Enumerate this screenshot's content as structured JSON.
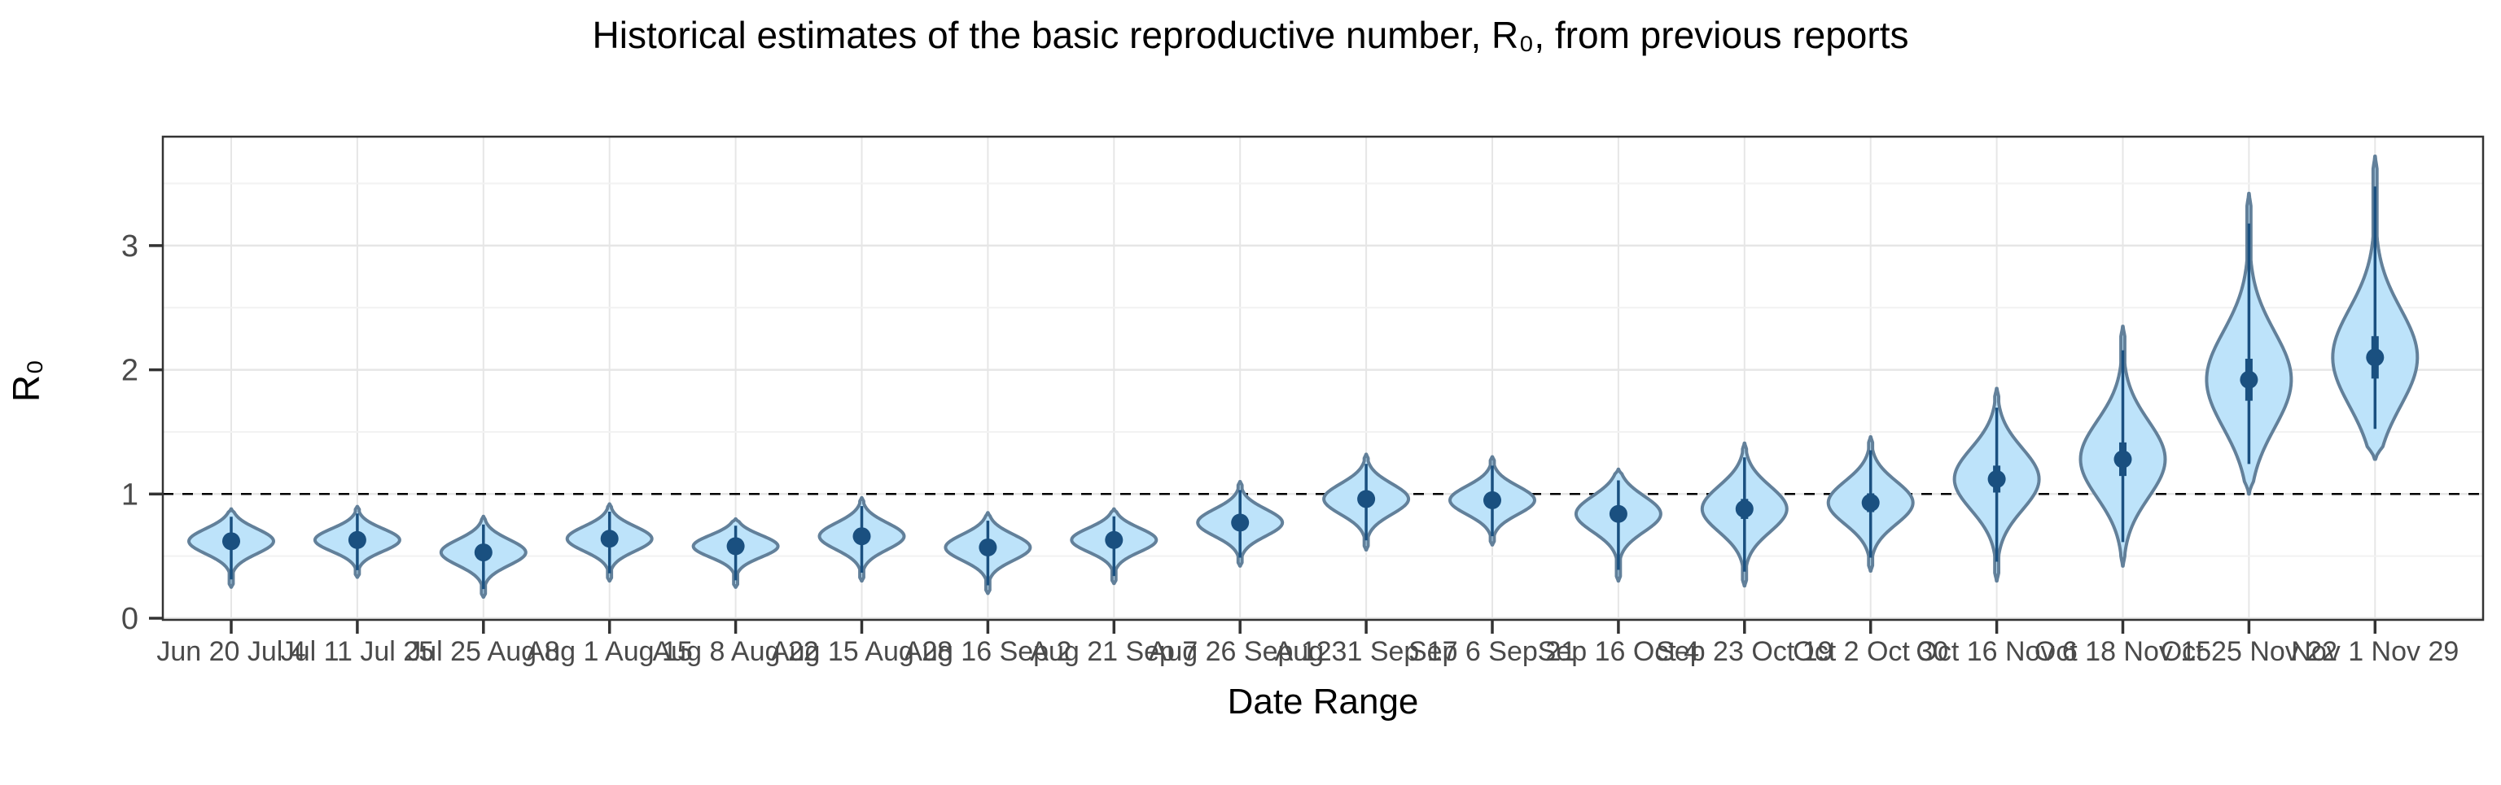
{
  "title": "Historical estimates of the basic reproductive number, R₀, from previous reports",
  "chart_data": {
    "type": "violin",
    "title": "Historical estimates of the basic reproductive number, R₀, from previous reports",
    "xlabel": "Date Range",
    "ylabel": "R₀",
    "yticks": [
      0,
      1,
      2,
      3
    ],
    "ylim": [
      0,
      3.88
    ],
    "reference_line_y": 1,
    "grid": "major and minor horizontal gridlines, vertical gridline per category",
    "legend": "none",
    "categories": [
      "Jun 20 Jul 4",
      "Jul 11 Jul 25",
      "Jul 25 Aug 8",
      "Aug 1 Aug 15",
      "Aug 8 Aug 22",
      "Aug 15 Aug 28",
      "Aug 16 Sep 2",
      "Aug 21 Sep 7",
      "Aug 26 Sep 12",
      "Aug 31 Sep 17",
      "Sep 6 Sep 21",
      "Sep 16 Oct 4",
      "Sep 23 Oct 19",
      "Oct 2 Oct 30",
      "Oct 16 Nov 6",
      "Oct 18 Nov 15",
      "Oct 25 Nov 22",
      "Nov 1 Nov 29"
    ],
    "violins": [
      {
        "label": "Jun 20 Jul 4",
        "median": 0.62,
        "low": 0.25,
        "high": 0.88
      },
      {
        "label": "Jul 11 Jul 25",
        "median": 0.63,
        "low": 0.33,
        "high": 0.9
      },
      {
        "label": "Jul 25 Aug 8",
        "median": 0.53,
        "low": 0.17,
        "high": 0.82
      },
      {
        "label": "Aug 1 Aug 15",
        "median": 0.64,
        "low": 0.3,
        "high": 0.92
      },
      {
        "label": "Aug 8 Aug 22",
        "median": 0.58,
        "low": 0.25,
        "high": 0.8
      },
      {
        "label": "Aug 15 Aug 28",
        "median": 0.66,
        "low": 0.3,
        "high": 0.97
      },
      {
        "label": "Aug 16 Sep 2",
        "median": 0.57,
        "low": 0.2,
        "high": 0.85
      },
      {
        "label": "Aug 21 Sep 7",
        "median": 0.63,
        "low": 0.28,
        "high": 0.88
      },
      {
        "label": "Aug 26 Sep 12",
        "median": 0.77,
        "low": 0.42,
        "high": 1.1
      },
      {
        "label": "Aug 31 Sep 17",
        "median": 0.96,
        "low": 0.55,
        "high": 1.32
      },
      {
        "label": "Sep 6 Sep 21",
        "median": 0.95,
        "low": 0.59,
        "high": 1.3
      },
      {
        "label": "Sep 16 Oct 4",
        "median": 0.84,
        "low": 0.3,
        "high": 1.2
      },
      {
        "label": "Sep 23 Oct 19",
        "median": 0.88,
        "low": 0.26,
        "high": 1.41
      },
      {
        "label": "Oct 2 Oct 30",
        "median": 0.93,
        "low": 0.38,
        "high": 1.46
      },
      {
        "label": "Oct 16 Nov 6",
        "median": 1.12,
        "low": 0.3,
        "high": 1.85
      },
      {
        "label": "Oct 18 Nov 15",
        "median": 1.28,
        "low": 0.42,
        "high": 2.35
      },
      {
        "label": "Oct 25 Nov 22",
        "median": 1.92,
        "low": 1.0,
        "high": 3.42
      },
      {
        "label": "Nov 1 Nov 29",
        "median": 2.1,
        "low": 1.28,
        "high": 3.72
      }
    ],
    "colors": {
      "violin_fill": "#BDE3FA",
      "violin_outline": "#62809A",
      "interval_marker": "#1A5080",
      "grid_major": "#E6E6E6",
      "grid_minor": "#F2F2F2",
      "axis_text": "#4A4A4A",
      "panel_border": "#333333",
      "reference_line": "#000000"
    }
  }
}
